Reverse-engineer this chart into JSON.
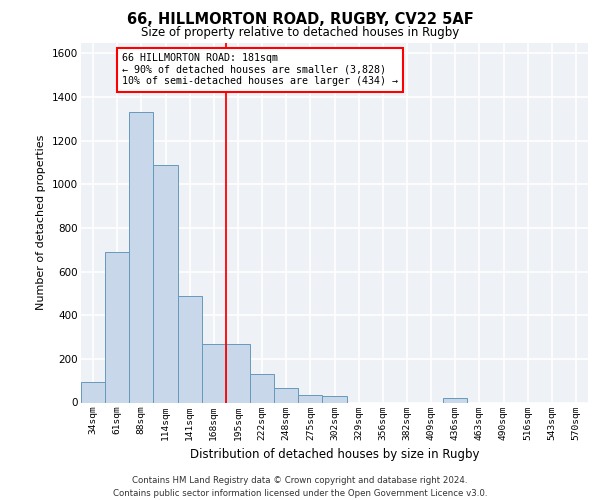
{
  "title_line1": "66, HILLMORTON ROAD, RUGBY, CV22 5AF",
  "title_line2": "Size of property relative to detached houses in Rugby",
  "xlabel": "Distribution of detached houses by size in Rugby",
  "ylabel": "Number of detached properties",
  "bar_color": "#c8d8ea",
  "bar_edge_color": "#6699bb",
  "categories": [
    "34sqm",
    "61sqm",
    "88sqm",
    "114sqm",
    "141sqm",
    "168sqm",
    "195sqm",
    "222sqm",
    "248sqm",
    "275sqm",
    "302sqm",
    "329sqm",
    "356sqm",
    "382sqm",
    "409sqm",
    "436sqm",
    "463sqm",
    "490sqm",
    "516sqm",
    "543sqm",
    "570sqm"
  ],
  "values": [
    95,
    690,
    1330,
    1090,
    490,
    270,
    270,
    130,
    65,
    35,
    30,
    0,
    0,
    0,
    0,
    20,
    0,
    0,
    0,
    0,
    0
  ],
  "ylim": [
    0,
    1650
  ],
  "yticks": [
    0,
    200,
    400,
    600,
    800,
    1000,
    1200,
    1400,
    1600
  ],
  "property_line_bin": 5.5,
  "annotation_text_line1": "66 HILLMORTON ROAD: 181sqm",
  "annotation_text_line2": "← 90% of detached houses are smaller (3,828)",
  "annotation_text_line3": "10% of semi-detached houses are larger (434) →",
  "footer_text": "Contains HM Land Registry data © Crown copyright and database right 2024.\nContains public sector information licensed under the Open Government Licence v3.0.",
  "background_color": "#eef2f7",
  "grid_color": "#ffffff"
}
